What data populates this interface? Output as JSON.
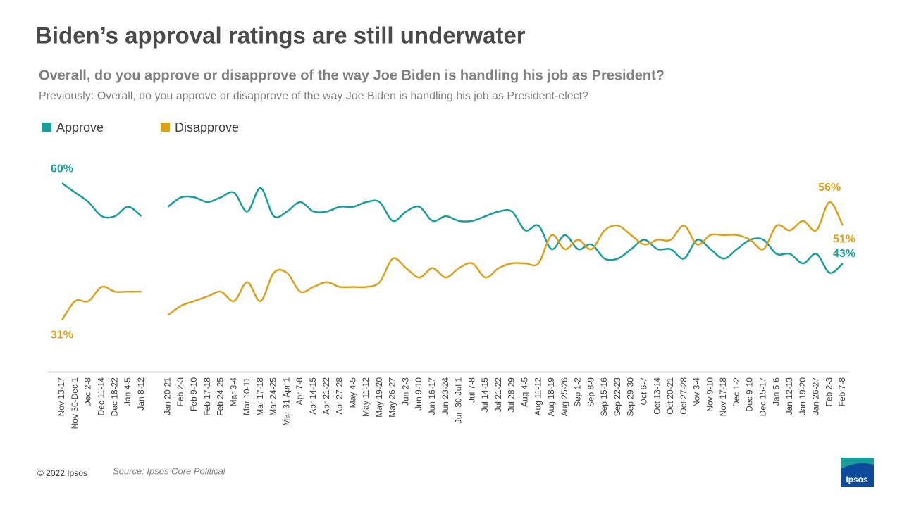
{
  "chart_data": {
    "type": "line",
    "title": "Biden’s approval ratings are still underwater",
    "subtitle": "Overall, do you approve or disapprove of the way Joe Biden is handling his job as President?",
    "note": "Previously: Overall, do you approve or disapprove of the way Joe Biden is handling his job as President-elect?",
    "copyright": "© 2022 Ipsos",
    "source": "Source: Ipsos Core Political",
    "logo": "Ipsos",
    "categories": [
      "Nov 13-17",
      "Nov 30-Dec 1",
      "Dec 2-8",
      "Dec 11-14",
      "Dec 18-22",
      "Jan 4-5",
      "Jan 8-12",
      null,
      "Jan 20-21",
      "Feb 2-3",
      "Feb 9-10",
      "Feb 17-18",
      "Feb 24-25",
      "Mar 3-4",
      "Mar 10-11",
      "Mar 17-18",
      "Mar 24-25",
      "Mar 31 Apr 1",
      "Apr 7-8",
      "Apr 14-15",
      "Apr 21-22",
      "Apr 27-28",
      "May 4-5",
      "May 11-12",
      "May 19-20",
      "May 26-27",
      "Jun 2-3",
      "Jun 9-10",
      "Jun 16-17",
      "Jun 23-24",
      "Jun 30-Jul 1",
      "Jul 7-8",
      "Jul 14-15",
      "Jul 21-22",
      "Jul 28-29",
      "Aug 4-5",
      "Aug 11-12",
      "Aug 18-19",
      "Aug 25-26",
      "Sep 1-2",
      "Sep 8-9",
      "Sep 15-16",
      "Sep 22-23",
      "Sep 29-30",
      "Oct 6-7",
      "Oct 13-14",
      "Oct 20-21",
      "Oct 27-28",
      "Nov 3-4",
      "Nov 9-10",
      "Nov 17-18",
      "Dec 1-2",
      "Dec 9-10",
      "Dec 15-17",
      "Jan 5-6",
      "Jan 12-13",
      "Jan 19-20",
      "Jan 26-27",
      "Feb 2-3",
      "Feb 7-8"
    ],
    "series": [
      {
        "name": "Approve",
        "color": "#1a9e9a",
        "values": [
          60,
          58,
          56,
          53,
          53,
          55,
          53,
          null,
          55,
          57,
          57,
          56,
          57,
          58,
          54,
          59,
          53,
          54,
          56,
          54,
          54,
          55,
          55,
          56,
          56,
          52,
          54,
          55,
          52,
          53,
          52,
          52,
          53,
          54,
          54,
          50,
          51,
          46,
          49,
          46,
          47,
          44,
          44,
          46,
          48,
          46,
          46,
          44,
          48,
          46,
          44,
          46,
          48,
          48,
          45,
          45,
          43,
          45,
          41,
          43
        ],
        "value_labels": [
          "60%",
          null,
          null,
          null,
          null,
          null,
          null,
          null,
          null,
          null,
          null,
          null,
          null,
          null,
          null,
          null,
          null,
          null,
          null,
          null,
          null,
          null,
          null,
          null,
          null,
          null,
          null,
          null,
          null,
          null,
          null,
          null,
          null,
          null,
          null,
          null,
          null,
          null,
          null,
          null,
          null,
          null,
          null,
          null,
          null,
          null,
          null,
          null,
          null,
          null,
          null,
          null,
          null,
          null,
          null,
          null,
          null,
          null,
          null,
          "43%"
        ]
      },
      {
        "name": "Disapprove",
        "color": "#daa21c",
        "values": [
          31,
          35,
          35,
          38,
          37,
          37,
          37,
          null,
          32,
          34,
          35,
          36,
          37,
          35,
          39,
          35,
          41,
          41,
          37,
          38,
          39,
          38,
          38,
          38,
          39,
          44,
          42,
          40,
          42,
          40,
          42,
          43,
          40,
          42,
          43,
          43,
          43,
          49,
          46,
          48,
          46,
          50,
          51,
          49,
          47,
          48,
          48,
          51,
          47,
          49,
          49,
          49,
          48,
          46,
          51,
          50,
          52,
          50,
          56,
          51
        ],
        "value_labels": [
          "31%",
          null,
          null,
          null,
          null,
          null,
          null,
          null,
          null,
          null,
          null,
          null,
          null,
          null,
          null,
          null,
          null,
          null,
          null,
          null,
          null,
          null,
          null,
          null,
          null,
          null,
          null,
          null,
          null,
          null,
          null,
          null,
          null,
          null,
          null,
          null,
          null,
          null,
          null,
          null,
          null,
          null,
          null,
          null,
          null,
          null,
          null,
          null,
          null,
          null,
          null,
          null,
          null,
          null,
          null,
          null,
          null,
          null,
          "56%",
          "51%"
        ]
      }
    ],
    "ylim": [
      20,
      66
    ]
  }
}
